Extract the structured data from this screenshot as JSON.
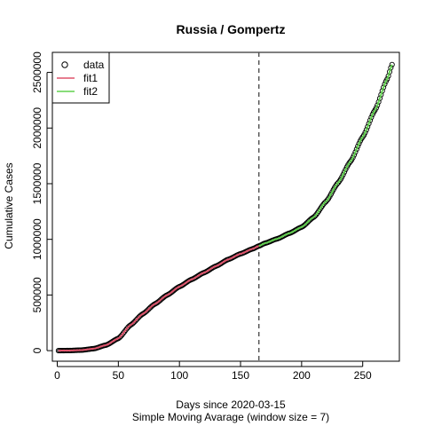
{
  "chart_data": {
    "type": "scatter",
    "title": "Russia / Gompertz",
    "xlabel": "Days since 2020-03-15",
    "xlabel2": "Simple Moving Avarage (window size = 7)",
    "ylabel": "Cumulative Cases",
    "xlim": [
      -4,
      280
    ],
    "ylim": [
      -95000,
      2680000
    ],
    "xticks": [
      0,
      50,
      100,
      150,
      200,
      250
    ],
    "yticks": [
      0,
      500000,
      1000000,
      1500000,
      2000000,
      2500000
    ],
    "xtick_labels": [
      "0",
      "50",
      "100",
      "150",
      "200",
      "250"
    ],
    "ytick_labels": [
      "0",
      "500000",
      "1000000",
      "1500000",
      "2000000",
      "2500000"
    ],
    "cutoff_day": 165,
    "legend": {
      "placement": "top-left",
      "entries": [
        {
          "label": "data",
          "symbol": "open-circle",
          "color": "#000000"
        },
        {
          "label": "fit1",
          "symbol": "line",
          "color": "#DF536B"
        },
        {
          "label": "fit2",
          "symbol": "line",
          "color": "#61D04F"
        }
      ]
    },
    "series": [
      {
        "name": "data",
        "kind": "points",
        "color": "#000000",
        "x_range": [
          1,
          274
        ],
        "anchors": [
          [
            1,
            0
          ],
          [
            10,
            1000
          ],
          [
            20,
            5000
          ],
          [
            30,
            18000
          ],
          [
            40,
            50000
          ],
          [
            50,
            110000
          ],
          [
            60,
            230000
          ],
          [
            70,
            330000
          ],
          [
            80,
            420000
          ],
          [
            90,
            500000
          ],
          [
            100,
            575000
          ],
          [
            110,
            640000
          ],
          [
            120,
            700000
          ],
          [
            130,
            760000
          ],
          [
            140,
            820000
          ],
          [
            150,
            870000
          ],
          [
            160,
            915000
          ],
          [
            165,
            940000
          ],
          [
            170,
            965000
          ],
          [
            180,
            1005000
          ],
          [
            190,
            1055000
          ],
          [
            200,
            1110000
          ],
          [
            210,
            1200000
          ],
          [
            220,
            1340000
          ],
          [
            230,
            1510000
          ],
          [
            240,
            1700000
          ],
          [
            250,
            1920000
          ],
          [
            260,
            2160000
          ],
          [
            270,
            2440000
          ],
          [
            274,
            2570000
          ]
        ]
      },
      {
        "name": "fit1",
        "kind": "line",
        "color": "#DF536B",
        "x_range": [
          1,
          165
        ],
        "anchors": [
          [
            1,
            0
          ],
          [
            10,
            1000
          ],
          [
            20,
            5000
          ],
          [
            30,
            18000
          ],
          [
            40,
            50000
          ],
          [
            50,
            110000
          ],
          [
            60,
            230000
          ],
          [
            70,
            330000
          ],
          [
            80,
            420000
          ],
          [
            90,
            500000
          ],
          [
            100,
            575000
          ],
          [
            110,
            640000
          ],
          [
            120,
            700000
          ],
          [
            130,
            760000
          ],
          [
            140,
            820000
          ],
          [
            150,
            870000
          ],
          [
            160,
            915000
          ],
          [
            165,
            940000
          ]
        ]
      },
      {
        "name": "fit2",
        "kind": "line",
        "color": "#61D04F",
        "x_range": [
          165,
          274
        ],
        "anchors": [
          [
            165,
            940000
          ],
          [
            170,
            965000
          ],
          [
            180,
            1005000
          ],
          [
            190,
            1055000
          ],
          [
            200,
            1110000
          ],
          [
            210,
            1200000
          ],
          [
            220,
            1340000
          ],
          [
            230,
            1510000
          ],
          [
            240,
            1700000
          ],
          [
            250,
            1920000
          ],
          [
            260,
            2160000
          ],
          [
            270,
            2440000
          ],
          [
            274,
            2570000
          ]
        ]
      }
    ]
  }
}
